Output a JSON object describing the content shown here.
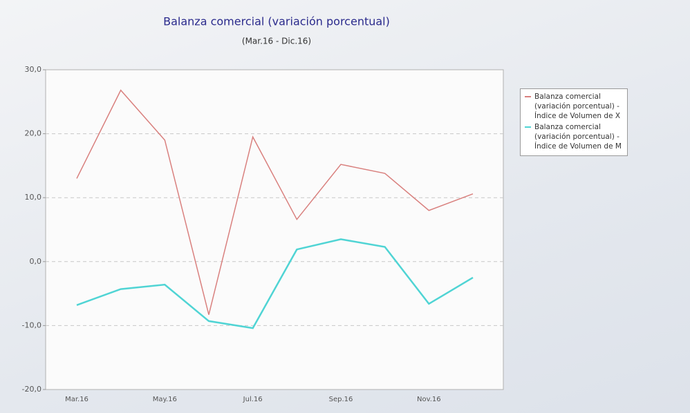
{
  "chart_data": {
    "type": "line",
    "title": "Balanza comercial (variación porcentual)",
    "subtitle": "(Mar.16 - Dic.16)",
    "categories": [
      "Mar.16",
      null,
      "May.16",
      null,
      "Jul.16",
      null,
      "Sep.16",
      null,
      "Nov.16",
      null
    ],
    "series": [
      {
        "name": "Balanza comercial (variación porcentual) - Índice de Volumen de X",
        "color": "#d9807e",
        "values": [
          13.0,
          26.8,
          19.0,
          -8.3,
          19.5,
          6.6,
          15.2,
          13.8,
          8.0,
          10.6
        ]
      },
      {
        "name": "Balanza comercial (variación porcentual) - Índice de Volumen de M",
        "color": "#4fd4d4",
        "values": [
          -6.8,
          -4.3,
          -3.6,
          -9.3,
          -10.4,
          1.9,
          3.5,
          2.3,
          -6.6,
          -2.5
        ]
      }
    ],
    "ylim": [
      -20,
      30
    ],
    "yticks": [
      {
        "value": -20,
        "label": "-20,0"
      },
      {
        "value": -10,
        "label": "-10,0"
      },
      {
        "value": 0,
        "label": "0,0"
      },
      {
        "value": 10,
        "label": "10,0"
      },
      {
        "value": 20,
        "label": "20,0"
      },
      {
        "value": 30,
        "label": "30,0"
      }
    ],
    "grid": true,
    "legend": "right"
  }
}
